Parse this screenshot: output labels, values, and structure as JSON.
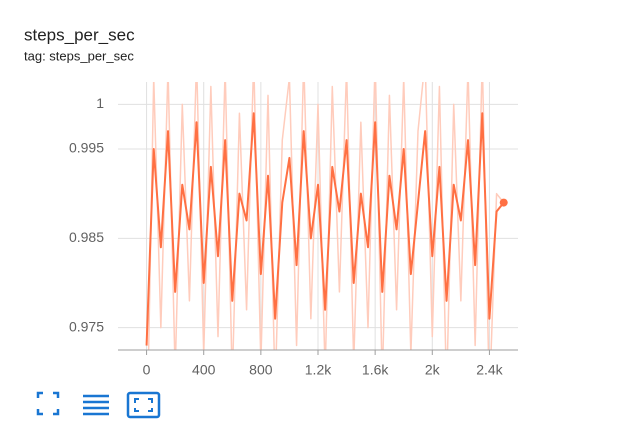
{
  "header": {
    "title": "steps_per_sec",
    "subtitle": "tag: steps_per_sec"
  },
  "chart_data": {
    "type": "line",
    "x": [
      0,
      50,
      100,
      150,
      200,
      250,
      300,
      350,
      400,
      450,
      500,
      550,
      600,
      650,
      700,
      750,
      800,
      850,
      900,
      950,
      1000,
      1050,
      1100,
      1150,
      1200,
      1250,
      1300,
      1350,
      1400,
      1450,
      1500,
      1550,
      1600,
      1650,
      1700,
      1750,
      1800,
      1850,
      1900,
      1950,
      2000,
      2050,
      2100,
      2150,
      2200,
      2250,
      2300,
      2350,
      2400,
      2450,
      2500
    ],
    "series": [
      {
        "color": "#ffccbc",
        "values": [
          0.96,
          1.003,
          0.975,
          1.004,
          0.97,
          1.0,
          0.978,
          1.005,
          0.972,
          1.002,
          0.974,
          1.004,
          0.969,
          0.999,
          0.977,
          1.005,
          0.971,
          1.001,
          0.968,
          0.996,
          1.003,
          0.973,
          1.005,
          0.976,
          1.0,
          0.97,
          1.002,
          0.979,
          1.004,
          0.971,
          0.998,
          0.975,
          1.005,
          0.969,
          1.001,
          0.977,
          1.003,
          0.972,
          0.997,
          1.005,
          0.974,
          1.002,
          0.968,
          1.0,
          0.978,
          1.004,
          0.973,
          1.005,
          0.967,
          0.99,
          0.989
        ]
      },
      {
        "color": "#ff7043",
        "values": [
          0.973,
          0.995,
          0.984,
          0.997,
          0.979,
          0.991,
          0.986,
          0.998,
          0.98,
          0.993,
          0.983,
          0.996,
          0.978,
          0.99,
          0.987,
          0.999,
          0.981,
          0.992,
          0.976,
          0.989,
          0.994,
          0.982,
          0.997,
          0.985,
          0.991,
          0.977,
          0.993,
          0.988,
          0.996,
          0.98,
          0.99,
          0.984,
          0.998,
          0.979,
          0.992,
          0.986,
          0.995,
          0.981,
          0.989,
          0.997,
          0.983,
          0.993,
          0.978,
          0.991,
          0.987,
          0.996,
          0.982,
          0.999,
          0.976,
          0.988,
          0.989
        ]
      }
    ],
    "xlim": [
      -200,
      2600
    ],
    "xticks": [
      0,
      400,
      800,
      {
        "value": 1200,
        "label": "1.2k"
      },
      {
        "value": 1600,
        "label": "1.6k"
      },
      {
        "value": 2000,
        "label": "2k"
      },
      {
        "value": 2400,
        "label": "2.4k"
      }
    ],
    "ylim": [
      0.9725,
      1.0025
    ],
    "yticks": [
      1,
      0.995,
      0.985,
      0.975
    ],
    "grid": true
  }
}
